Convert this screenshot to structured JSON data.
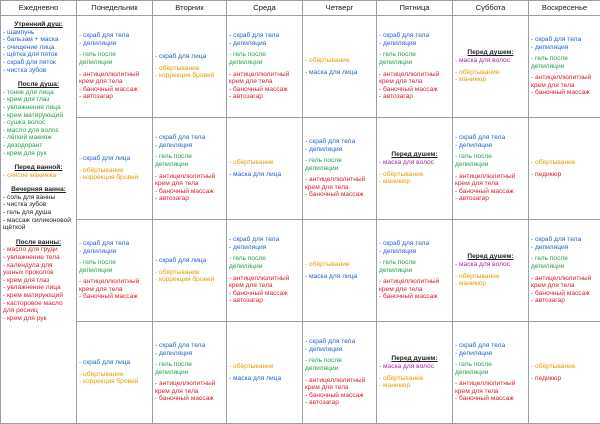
{
  "headers": [
    "Ежедневно",
    "Понедельник",
    "Вторник",
    "Среда",
    "Четверг",
    "Пятница",
    "Суббота",
    "Воскресенье"
  ],
  "daily": [
    {
      "type": "h",
      "text": "Утренний душ:"
    },
    {
      "type": "l",
      "c": "blue",
      "text": "- шампунь"
    },
    {
      "type": "l",
      "c": "blue",
      "text": "- бальзам + маска"
    },
    {
      "type": "l",
      "c": "blue",
      "text": "- очищение лица"
    },
    {
      "type": "l",
      "c": "blue",
      "text": "- щётка для пяток"
    },
    {
      "type": "l",
      "c": "blue",
      "text": "- скраб для пяток"
    },
    {
      "type": "l",
      "c": "blue",
      "text": "- чистка зубов"
    },
    {
      "type": "gap"
    },
    {
      "type": "h",
      "text": "После душа:"
    },
    {
      "type": "l",
      "c": "green",
      "text": "- тоник для лица"
    },
    {
      "type": "l",
      "c": "green",
      "text": "- крем для глаз"
    },
    {
      "type": "l",
      "c": "green",
      "text": "- увлажнение лица"
    },
    {
      "type": "l",
      "c": "green",
      "text": "- крем матирующий"
    },
    {
      "type": "l",
      "c": "green",
      "text": "- сушка волос"
    },
    {
      "type": "l",
      "c": "green",
      "text": "- масло для волос"
    },
    {
      "type": "l",
      "c": "green",
      "text": "- лёгкий макияж"
    },
    {
      "type": "l",
      "c": "green",
      "text": "- дезодорант"
    },
    {
      "type": "l",
      "c": "green",
      "text": "- крем для рук"
    },
    {
      "type": "gap"
    },
    {
      "type": "h",
      "text": "Перед ванной:"
    },
    {
      "type": "l",
      "c": "orange",
      "text": "- снятие макияжа"
    },
    {
      "type": "gap"
    },
    {
      "type": "h",
      "text": "Вечерняя ванна:"
    },
    {
      "type": "l",
      "c": "black",
      "text": "- соль для ванны"
    },
    {
      "type": "l",
      "c": "black",
      "text": "- чистка зубов"
    },
    {
      "type": "l",
      "c": "black",
      "text": "- гель для душа"
    },
    {
      "type": "l",
      "c": "black",
      "text": "- массаж силиконовой"
    },
    {
      "type": "l",
      "c": "black",
      "text": "щёткой"
    },
    {
      "type": "gap"
    },
    {
      "type": "h",
      "text": "После ванны:"
    },
    {
      "type": "l",
      "c": "red",
      "text": "- масло для груди"
    },
    {
      "type": "l",
      "c": "red",
      "text": "- увлажнение тела"
    },
    {
      "type": "l",
      "c": "red",
      "text": "- календула для"
    },
    {
      "type": "l",
      "c": "red",
      "text": "ушных проколов"
    },
    {
      "type": "l",
      "c": "red",
      "text": "- крем для глаз"
    },
    {
      "type": "l",
      "c": "red",
      "text": "- увлажнение лица"
    },
    {
      "type": "l",
      "c": "red",
      "text": "- крем матирующий"
    },
    {
      "type": "l",
      "c": "red",
      "text": "- касторовое масло"
    },
    {
      "type": "l",
      "c": "red",
      "text": "для ресниц"
    },
    {
      "type": "l",
      "c": "red",
      "text": "- крем для рук"
    }
  ],
  "weeks": [
    [
      [
        {
          "c": "blue",
          "text": "- скраб для тела"
        },
        {
          "c": "blue",
          "text": "- депиляция"
        },
        {
          "gap": 1
        },
        {
          "c": "green",
          "text": "- гель после"
        },
        {
          "c": "green",
          "text": "депиляции"
        },
        {
          "gap": 1
        },
        {
          "c": "red",
          "text": "- антицеллюлитный"
        },
        {
          "c": "red",
          "text": "крем для тела"
        },
        {
          "c": "red",
          "text": "- баночный массаж"
        },
        {
          "c": "red",
          "text": "- автозагар"
        }
      ],
      [
        {
          "c": "blue",
          "text": "- скраб для лица"
        },
        {
          "gap": 1
        },
        {
          "c": "orange",
          "text": "- обёртывание"
        },
        {
          "c": "orange",
          "text": "- коррекция бровей"
        }
      ],
      [
        {
          "c": "blue",
          "text": "- скраб для тела"
        },
        {
          "c": "blue",
          "text": "- депиляция"
        },
        {
          "gap": 1
        },
        {
          "c": "green",
          "text": "- гель после"
        },
        {
          "c": "green",
          "text": "депиляции"
        },
        {
          "gap": 1
        },
        {
          "c": "red",
          "text": "- антицеллюлитный"
        },
        {
          "c": "red",
          "text": "крем для тела"
        },
        {
          "c": "red",
          "text": "- баночный массаж"
        },
        {
          "c": "red",
          "text": "- автозагар"
        }
      ],
      [
        {
          "c": "orange",
          "text": "- обёртывание"
        },
        {
          "gap": 1
        },
        {
          "c": "blue",
          "text": "- маска для лица"
        }
      ],
      [
        {
          "c": "blue",
          "text": "- скраб для тела"
        },
        {
          "c": "blue",
          "text": "- депиляция"
        },
        {
          "gap": 1
        },
        {
          "c": "green",
          "text": "- гель после"
        },
        {
          "c": "green",
          "text": "депиляции"
        },
        {
          "gap": 1
        },
        {
          "c": "red",
          "text": "- антицеллюлитный"
        },
        {
          "c": "red",
          "text": "крем для тела"
        },
        {
          "c": "red",
          "text": "- баночный массаж"
        },
        {
          "c": "red",
          "text": "- автозагар"
        }
      ],
      [
        {
          "h": "Перед душем:"
        },
        {
          "c": "purple",
          "text": "- маска для волос"
        },
        {
          "gap": 1
        },
        {
          "c": "orange",
          "text": "- обёртывание"
        },
        {
          "c": "orange",
          "text": "- маникюр"
        }
      ],
      [
        {
          "c": "blue",
          "text": "- скраб для тела"
        },
        {
          "c": "blue",
          "text": "- депиляция"
        },
        {
          "gap": 1
        },
        {
          "c": "green",
          "text": "- гель после"
        },
        {
          "c": "green",
          "text": "депиляции"
        },
        {
          "gap": 1
        },
        {
          "c": "red",
          "text": "- антицеллюлитный"
        },
        {
          "c": "red",
          "text": "крем для тела"
        },
        {
          "c": "red",
          "text": "- баночный массаж"
        }
      ]
    ],
    [
      [
        {
          "c": "blue",
          "text": "- скраб для лица"
        },
        {
          "gap": 1
        },
        {
          "c": "orange",
          "text": "- обёртывание"
        },
        {
          "c": "orange",
          "text": "- коррекция бровей"
        }
      ],
      [
        {
          "c": "blue",
          "text": "- скраб для тела"
        },
        {
          "c": "blue",
          "text": "- депиляция"
        },
        {
          "gap": 1
        },
        {
          "c": "green",
          "text": "- гель после"
        },
        {
          "c": "green",
          "text": "депиляции"
        },
        {
          "gap": 1
        },
        {
          "c": "red",
          "text": "- антицеллюлитный"
        },
        {
          "c": "red",
          "text": "крем для тела"
        },
        {
          "c": "red",
          "text": "- баночный массаж"
        },
        {
          "c": "red",
          "text": "- автозагар"
        }
      ],
      [
        {
          "c": "orange",
          "text": "- обёртывание"
        },
        {
          "gap": 1
        },
        {
          "c": "blue",
          "text": "- маска для лица"
        }
      ],
      [
        {
          "c": "blue",
          "text": "- скраб для тела"
        },
        {
          "c": "blue",
          "text": "- депиляция"
        },
        {
          "gap": 1
        },
        {
          "c": "green",
          "text": "- гель после"
        },
        {
          "c": "green",
          "text": "депиляции"
        },
        {
          "gap": 1
        },
        {
          "c": "red",
          "text": "- антицеллюлитный"
        },
        {
          "c": "red",
          "text": "крем для тела"
        },
        {
          "c": "red",
          "text": "- баночный массаж"
        }
      ],
      [
        {
          "h": "Перед душем:"
        },
        {
          "c": "purple",
          "text": "- маска для волос"
        },
        {
          "gap": 1
        },
        {
          "c": "orange",
          "text": "- обёртывание"
        },
        {
          "c": "orange",
          "text": "- маникюр"
        }
      ],
      [
        {
          "c": "blue",
          "text": "- скраб для тела"
        },
        {
          "c": "blue",
          "text": "- депиляция"
        },
        {
          "gap": 1
        },
        {
          "c": "green",
          "text": "- гель после"
        },
        {
          "c": "green",
          "text": "депиляции"
        },
        {
          "gap": 1
        },
        {
          "c": "red",
          "text": "- антицеллюлитный"
        },
        {
          "c": "red",
          "text": "крем для тела"
        },
        {
          "c": "red",
          "text": "- баночный массаж"
        },
        {
          "c": "red",
          "text": "- автозагар"
        }
      ],
      [
        {
          "c": "orange",
          "text": "- обёртывание"
        },
        {
          "gap": 1
        },
        {
          "c": "red",
          "text": "- педикюр"
        }
      ]
    ],
    [
      [
        {
          "c": "blue",
          "text": "- скраб для тела"
        },
        {
          "c": "blue",
          "text": "- депиляция"
        },
        {
          "gap": 1
        },
        {
          "c": "green",
          "text": "- гель после"
        },
        {
          "c": "green",
          "text": "депиляции"
        },
        {
          "gap": 1
        },
        {
          "c": "red",
          "text": "- антицеллюлитный"
        },
        {
          "c": "red",
          "text": "крем для тела"
        },
        {
          "c": "red",
          "text": "- баночный массаж"
        }
      ],
      [
        {
          "c": "blue",
          "text": "- скраб для лица"
        },
        {
          "gap": 1
        },
        {
          "c": "orange",
          "text": "- обёртывание"
        },
        {
          "c": "orange",
          "text": "- коррекция бровей"
        }
      ],
      [
        {
          "c": "blue",
          "text": "- скраб для тела"
        },
        {
          "c": "blue",
          "text": "- депиляция"
        },
        {
          "gap": 1
        },
        {
          "c": "green",
          "text": "- гель после"
        },
        {
          "c": "green",
          "text": "депиляции"
        },
        {
          "gap": 1
        },
        {
          "c": "red",
          "text": "- антицеллюлитный"
        },
        {
          "c": "red",
          "text": "крем для тела"
        },
        {
          "c": "red",
          "text": "- баночный массаж"
        },
        {
          "c": "red",
          "text": "- автозагар"
        }
      ],
      [
        {
          "c": "orange",
          "text": "- обёртывание"
        },
        {
          "gap": 1
        },
        {
          "c": "blue",
          "text": "- маска для лица"
        }
      ],
      [
        {
          "c": "blue",
          "text": "- скраб для тела"
        },
        {
          "c": "blue",
          "text": "- депиляция"
        },
        {
          "gap": 1
        },
        {
          "c": "green",
          "text": "- гель после"
        },
        {
          "c": "green",
          "text": "депиляции"
        },
        {
          "gap": 1
        },
        {
          "c": "red",
          "text": "- антицеллюлитный"
        },
        {
          "c": "red",
          "text": "крем для тела"
        },
        {
          "c": "red",
          "text": "- баночный массаж"
        }
      ],
      [
        {
          "h": "Перед душем:"
        },
        {
          "c": "purple",
          "text": "- маска для волос"
        },
        {
          "gap": 1
        },
        {
          "c": "orange",
          "text": "- обёртывание"
        },
        {
          "c": "orange",
          "text": "- маникюр"
        }
      ],
      [
        {
          "c": "blue",
          "text": "- скраб для тела"
        },
        {
          "c": "blue",
          "text": "- депиляция"
        },
        {
          "gap": 1
        },
        {
          "c": "green",
          "text": "- гель после"
        },
        {
          "c": "green",
          "text": "депиляции"
        },
        {
          "gap": 1
        },
        {
          "c": "red",
          "text": "- антицеллюлитный"
        },
        {
          "c": "red",
          "text": "крем для тела"
        },
        {
          "c": "red",
          "text": "- баночный массаж"
        },
        {
          "c": "red",
          "text": "- автозагар"
        }
      ]
    ],
    [
      [
        {
          "c": "blue",
          "text": "- скраб для лица"
        },
        {
          "gap": 1
        },
        {
          "c": "orange",
          "text": "- обёртывание"
        },
        {
          "c": "orange",
          "text": "- коррекция бровей"
        }
      ],
      [
        {
          "c": "blue",
          "text": "- скраб для тела"
        },
        {
          "c": "blue",
          "text": "- депиляция"
        },
        {
          "gap": 1
        },
        {
          "c": "green",
          "text": "- гель после"
        },
        {
          "c": "green",
          "text": "депиляции"
        },
        {
          "gap": 1
        },
        {
          "c": "red",
          "text": "- антицеллюлитный"
        },
        {
          "c": "red",
          "text": "крем для тела"
        },
        {
          "c": "red",
          "text": "- баночный массаж"
        }
      ],
      [
        {
          "c": "orange",
          "text": "- обёртывание"
        },
        {
          "gap": 1
        },
        {
          "c": "blue",
          "text": "- маска для лица"
        }
      ],
      [
        {
          "c": "blue",
          "text": "- скраб для тела"
        },
        {
          "c": "blue",
          "text": "- депиляция"
        },
        {
          "gap": 1
        },
        {
          "c": "green",
          "text": "- гель после"
        },
        {
          "c": "green",
          "text": "депиляции"
        },
        {
          "gap": 1
        },
        {
          "c": "red",
          "text": "- антицеллюлитный"
        },
        {
          "c": "red",
          "text": "крем для тела"
        },
        {
          "c": "red",
          "text": "- баночный массаж"
        },
        {
          "c": "red",
          "text": "- автозагар"
        }
      ],
      [
        {
          "h": "Перед душем:"
        },
        {
          "c": "purple",
          "text": "- маска для волос"
        },
        {
          "gap": 1
        },
        {
          "c": "orange",
          "text": "- обёртывание"
        },
        {
          "c": "orange",
          "text": "- маникюр"
        }
      ],
      [
        {
          "c": "blue",
          "text": "- скраб для тела"
        },
        {
          "c": "blue",
          "text": "- депиляция"
        },
        {
          "gap": 1
        },
        {
          "c": "green",
          "text": "- гель после"
        },
        {
          "c": "green",
          "text": "депиляции"
        },
        {
          "gap": 1
        },
        {
          "c": "red",
          "text": "- антицеллюлитный"
        },
        {
          "c": "red",
          "text": "крем для тела"
        },
        {
          "c": "red",
          "text": "- баночный массаж"
        }
      ],
      [
        {
          "c": "orange",
          "text": "- обёртывание"
        },
        {
          "gap": 1
        },
        {
          "c": "red",
          "text": "- педикюр"
        }
      ]
    ]
  ]
}
